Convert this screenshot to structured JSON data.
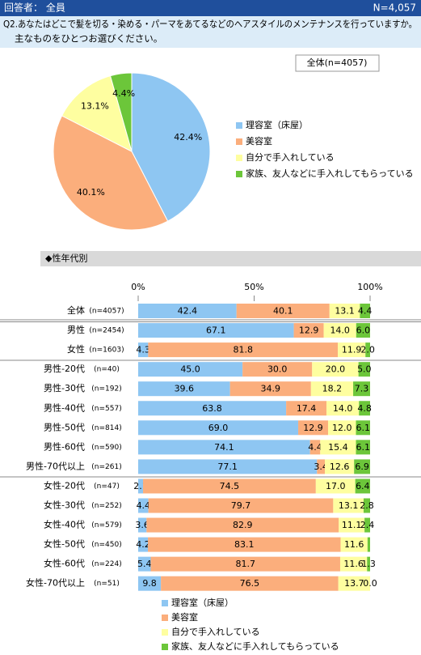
{
  "header": {
    "left": "回答者： 全員",
    "right": "N=4,057"
  },
  "question": [
    "Q2.あなたはどこで髪を切る・染める・パーマをあてるなどのヘアスタイルのメンテナンスを行っていますか。",
    "主なものをひとつお選びください。"
  ],
  "chart_data": [
    {
      "type": "pie",
      "title": "全体(n=4057)",
      "categories": [
        "理容室（床屋）",
        "美容室",
        "自分で手入れしている",
        "家族、友人などに手入れしてもらっている"
      ],
      "colors": [
        "#8ec6f2",
        "#fbae7c",
        "#fefea0",
        "#6cc63a"
      ],
      "values": [
        42.4,
        40.1,
        13.1,
        4.4
      ],
      "value_labels": [
        "42.4%",
        "40.1%",
        "13.1%",
        "4.4%"
      ]
    },
    {
      "type": "stacked_bar",
      "title": "◆性年代別",
      "categories": [
        "全体",
        "男性",
        "女性",
        "男性-20代",
        "男性-30代",
        "男性-40代",
        "男性-50代",
        "男性-60代",
        "男性-70代以上",
        "女性-20代",
        "女性-30代",
        "女性-40代",
        "女性-50代",
        "女性-60代",
        "女性-70代以上"
      ],
      "sample_sizes": [
        "(n=4057)",
        "(n=2454)",
        "(n=1603)",
        "(n=40)",
        "(n=192)",
        "(n=557)",
        "(n=814)",
        "(n=590)",
        "(n=261)",
        "(n=47)",
        "(n=252)",
        "(n=579)",
        "(n=450)",
        "(n=224)",
        "(n=51)"
      ],
      "xlim": [
        0,
        100
      ],
      "xticks": [
        {
          "value": 0,
          "label": "0%"
        },
        {
          "value": 50,
          "label": "50%"
        },
        {
          "value": 100,
          "label": "100%"
        }
      ],
      "series": [
        {
          "name": "理容室（床屋）",
          "color": "#8ec6f2",
          "values": [
            42.4,
            67.1,
            4.3,
            45.0,
            39.6,
            63.8,
            69.0,
            74.1,
            77.1,
            2.1,
            4.4,
            3.6,
            4.2,
            5.4,
            9.8
          ],
          "value_labels": [
            "42.4",
            "67.1",
            "4.3",
            "45.0",
            "39.6",
            "63.8",
            "69.0",
            "74.1",
            "77.1",
            "2.1",
            "4.4",
            "3.6",
            "4.2",
            "5.4",
            "9.8"
          ]
        },
        {
          "name": "美容室",
          "color": "#fbae7c",
          "values": [
            40.1,
            12.9,
            81.8,
            30.0,
            34.9,
            17.4,
            12.9,
            4.4,
            3.4,
            74.5,
            79.7,
            82.9,
            83.1,
            81.7,
            76.5
          ],
          "value_labels": [
            "40.1",
            "12.9",
            "81.8",
            "30.0",
            "34.9",
            "17.4",
            "12.9",
            "4.4",
            "3.4",
            "74.5",
            "79.7",
            "82.9",
            "83.1",
            "81.7",
            "76.5"
          ]
        },
        {
          "name": "自分で手入れしている",
          "color": "#fefea0",
          "values": [
            13.1,
            14.0,
            11.9,
            20.0,
            18.2,
            14.0,
            12.0,
            15.4,
            12.6,
            17.0,
            13.1,
            11.1,
            11.6,
            11.6,
            13.7
          ],
          "value_labels": [
            "13.1",
            "14.0",
            "11.9",
            "20.0",
            "18.2",
            "14.0",
            "12.0",
            "15.4",
            "12.6",
            "17.0",
            "13.1",
            "11.1",
            "11.6",
            "11.6",
            "13.7"
          ]
        },
        {
          "name": "家族、友人などに手入れしてもらっている",
          "color": "#6cc63a",
          "values": [
            4.4,
            6.0,
            2.0,
            5.0,
            7.3,
            4.8,
            6.1,
            6.1,
            6.9,
            6.4,
            2.8,
            2.4,
            1.1,
            1.3,
            0.0
          ],
          "value_labels": [
            "4.4",
            "6.0",
            "2.0",
            "5.0",
            "7.3",
            "4.8",
            "6.1",
            "6.1",
            "6.9",
            "6.4",
            "2.8",
            "2.4",
            null,
            "1.3",
            "0.0"
          ]
        }
      ]
    }
  ]
}
